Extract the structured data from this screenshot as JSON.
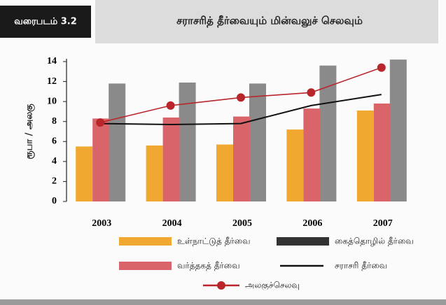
{
  "chart_data": {
    "type": "bar",
    "figure_label": "வரைபடம் 3.2",
    "title": "சராசரித் தீர்வையும் மின்வலுச் செலவும்",
    "y_label": "ரூபா / அலகு",
    "categories": [
      "2003",
      "2004",
      "2005",
      "2006",
      "2007"
    ],
    "ylim": [
      0,
      14
    ],
    "yticks": [
      0,
      2,
      4,
      6,
      8,
      10,
      12,
      14
    ],
    "series": [
      {
        "name": "உள்நாட்டுத் தீர்வை",
        "type": "bar",
        "color": "#f0a830",
        "values": [
          5.5,
          5.6,
          5.7,
          7.2,
          9.1
        ]
      },
      {
        "name": "கைத்தொழில் தீர்வை",
        "type": "bar",
        "color": "#8a8a8a",
        "values": [
          11.8,
          11.9,
          11.8,
          13.6,
          14.2
        ]
      },
      {
        "name": "வர்த்தகத் தீர்வை",
        "type": "bar",
        "color": "#d9646a",
        "values": [
          8.3,
          8.4,
          8.5,
          9.3,
          9.8
        ]
      },
      {
        "name": "சராசரி தீர்வை",
        "type": "line",
        "color": "#111111",
        "values": [
          7.8,
          7.7,
          7.8,
          9.6,
          10.7
        ]
      },
      {
        "name": "அலகுச்செலவு",
        "type": "line",
        "color": "#b8262c",
        "markers": true,
        "values": [
          7.9,
          9.6,
          10.4,
          10.9,
          13.4
        ]
      }
    ]
  }
}
